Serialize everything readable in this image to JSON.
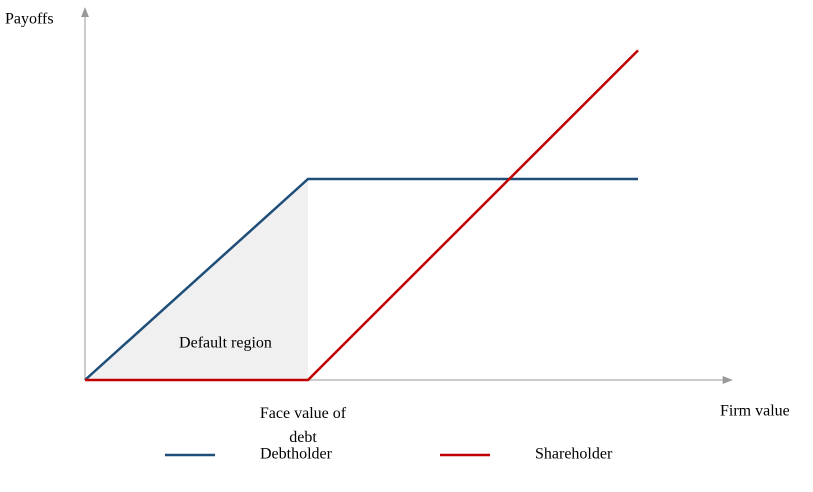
{
  "chart_data": {
    "type": "line",
    "ylabel": "Payoffs",
    "xlabel": "Firm value",
    "xlim": [
      0,
      2.9
    ],
    "ylim": [
      0,
      1.85
    ],
    "xticks": [
      {
        "value": 1,
        "label": "Face value of debt"
      }
    ],
    "annotation": {
      "text": "Default region",
      "x": 0.63,
      "y": 0.18
    },
    "series": [
      {
        "name": "Debtholder",
        "color": "#1f4e79",
        "x": [
          0,
          1,
          2.48
        ],
        "values": [
          0,
          1,
          1
        ]
      },
      {
        "name": "Shareholder",
        "color": "#c00000",
        "x": [
          0,
          1,
          2.48
        ],
        "values": [
          0,
          0,
          1.64
        ]
      }
    ]
  }
}
